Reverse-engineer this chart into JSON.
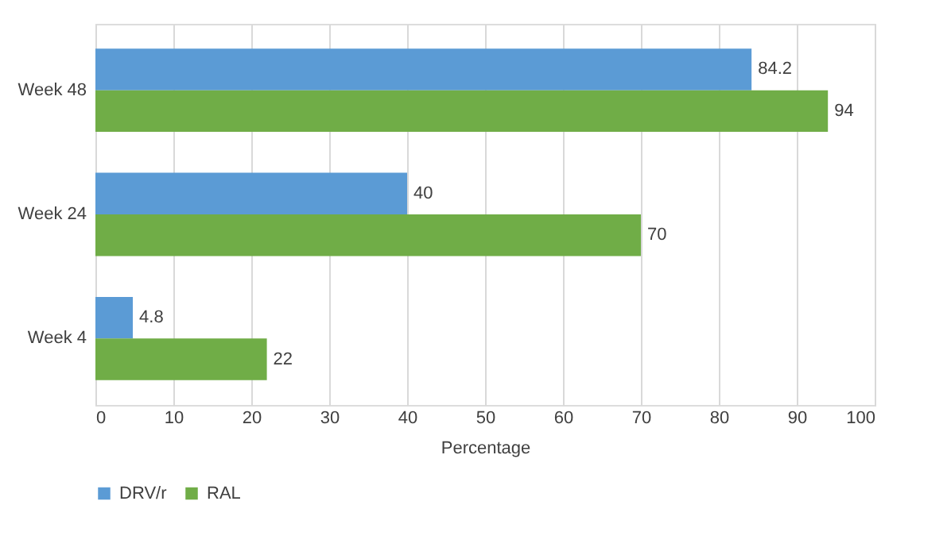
{
  "chart_data": {
    "type": "bar",
    "orientation": "horizontal",
    "xlabel": "Percentage",
    "categories": [
      "Week 48",
      "Week 24",
      "Week 4"
    ],
    "series": [
      {
        "name": "DRV/r",
        "color": "#5b9bd5",
        "values": [
          84.2,
          40,
          4.8
        ]
      },
      {
        "name": "RAL",
        "color": "#70ad47",
        "values": [
          94,
          70,
          22
        ]
      }
    ],
    "xlim": [
      0,
      100
    ],
    "xticks": [
      0,
      10,
      20,
      30,
      40,
      50,
      60,
      70,
      80,
      90,
      100
    ],
    "grid": "x",
    "legend": "bottom",
    "data_labels": true
  }
}
